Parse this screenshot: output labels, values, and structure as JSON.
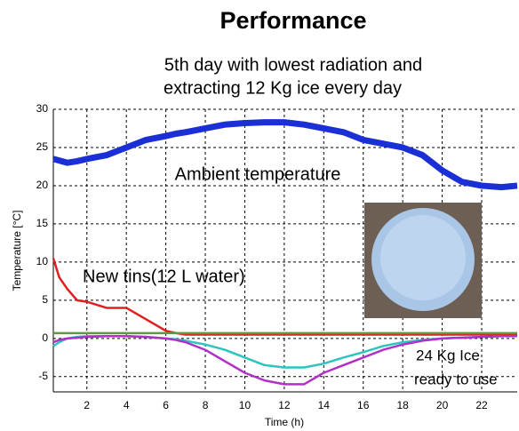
{
  "chart_data": {
    "type": "line",
    "title": "Performance",
    "subtitle": [
      "5th day with lowest radiation and",
      "extracting 12 Kg ice every day"
    ],
    "x_label": "Time (h)",
    "y_label": "Temperature [°C]",
    "x": [
      0.3,
      0.6,
      1,
      1.5,
      2,
      3,
      4,
      5,
      6,
      6.5,
      7,
      8,
      9,
      10,
      11,
      12,
      13,
      14,
      15,
      16,
      17,
      18,
      19,
      20,
      21,
      22,
      23,
      23.8
    ],
    "series": [
      {
        "color": "#1a2fd6",
        "values": [
          23.5,
          23.3,
          23,
          23.2,
          23.5,
          24,
          25,
          26,
          26.5,
          26.8,
          27,
          27.5,
          28,
          28.2,
          28.3,
          28.3,
          28,
          27.5,
          27,
          26,
          25.5,
          25,
          24,
          22,
          20.5,
          20,
          19.8,
          20
        ]
      },
      {
        "color": "#e02020",
        "values": [
          10.5,
          8,
          6.5,
          5,
          4.8,
          4,
          4,
          2.5,
          1,
          0.7,
          0.5,
          0.5,
          0.5,
          0.5,
          0.5,
          0.5,
          0.5,
          0.5,
          0.5,
          0.5,
          0.5,
          0.5,
          0.5,
          0.5,
          0.5,
          0.5,
          0.5,
          0.5
        ]
      },
      {
        "color": "#5a9a3a",
        "values": [
          0.7,
          0.7,
          0.7,
          0.7,
          0.7,
          0.7,
          0.7,
          0.7,
          0.7,
          0.7,
          0.7,
          0.7,
          0.7,
          0.7,
          0.7,
          0.7,
          0.7,
          0.7,
          0.7,
          0.7,
          0.7,
          0.7,
          0.7,
          0.7,
          0.7,
          0.7,
          0.7,
          0.7
        ]
      },
      {
        "color": "#2ec4c0",
        "values": [
          -1,
          -0.5,
          0,
          0.2,
          0.3,
          0.3,
          0.3,
          0.2,
          0,
          -0.1,
          -0.3,
          -0.8,
          -1.5,
          -2.5,
          -3.5,
          -3.8,
          -3.8,
          -3.3,
          -2.5,
          -1.8,
          -1,
          -0.5,
          -0.2,
          0,
          0.1,
          0.2,
          0.3,
          0.3
        ]
      },
      {
        "color": "#b030c8",
        "values": [
          -0.5,
          -0.2,
          0,
          0.1,
          0.2,
          0.3,
          0.3,
          0.2,
          0,
          -0.2,
          -0.5,
          -1.5,
          -3,
          -4.5,
          -5.5,
          -6,
          -6,
          -4.5,
          -3.5,
          -2.5,
          -1.5,
          -0.8,
          -0.3,
          0,
          0.1,
          0.2,
          0.3,
          0.3
        ]
      }
    ],
    "annotations": [
      "Ambient temperature",
      "New tins(12 L water)",
      "24 Kg Ice",
      "ready to use"
    ],
    "xlim": [
      0.3,
      23.8
    ],
    "ylim": [
      -7,
      30
    ],
    "xticks": [
      2,
      4,
      6,
      8,
      10,
      12,
      14,
      16,
      18,
      20,
      22
    ],
    "yticks": [
      -5,
      0,
      5,
      10,
      15,
      20,
      25,
      30
    ],
    "grid": true
  }
}
